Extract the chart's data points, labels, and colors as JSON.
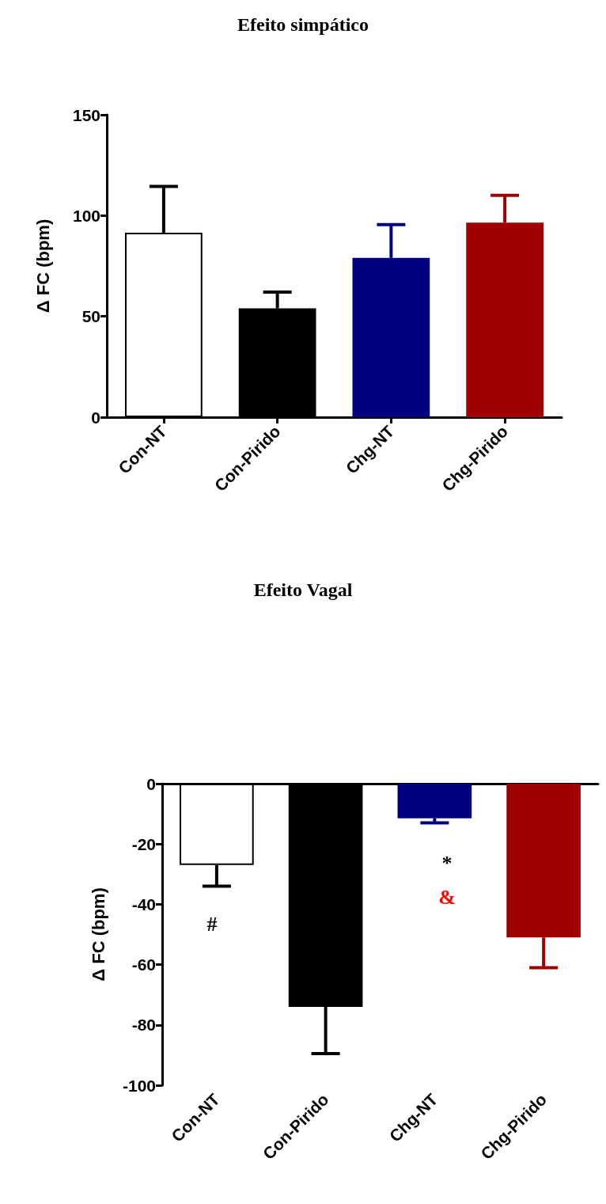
{
  "chart_data": [
    {
      "type": "bar",
      "title": "Efeito simpático",
      "ylabel": "Δ FC (bpm)",
      "categories": [
        "Con-NT",
        "Con-Pirido",
        "Chg-NT",
        "Chg-Pirido"
      ],
      "values": [
        91.5,
        54,
        79,
        96.5
      ],
      "colors": [
        "#ffffff",
        "#000000",
        "#000080",
        "#a00000"
      ],
      "errors": [
        [
          91.5,
          114.5
        ],
        [
          54,
          62
        ],
        [
          79,
          95.5
        ],
        [
          96.5,
          110
        ]
      ],
      "ylim": [
        0,
        150
      ],
      "yticks": [
        0,
        50,
        100,
        150
      ],
      "grid": false
    },
    {
      "type": "bar",
      "title": "Efeito Vagal",
      "ylabel": "Δ FC (bpm)",
      "categories": [
        "Con-NT",
        "Con-Pirido",
        "Chg-NT",
        "Chg-Pirido"
      ],
      "values": [
        -27,
        -74,
        -11.5,
        -51
      ],
      "colors": [
        "#ffffff",
        "#000000",
        "#000080",
        "#a00000"
      ],
      "errors": [
        [
          -34,
          -27
        ],
        [
          -89.5,
          -74
        ],
        [
          -13,
          -11.5
        ],
        [
          -61,
          -51
        ]
      ],
      "ylim": [
        -100,
        0
      ],
      "yticks": [
        -100,
        -80,
        -60,
        -40,
        -20,
        0
      ],
      "grid": false,
      "annotations": [
        "#",
        "*",
        "&"
      ]
    }
  ]
}
